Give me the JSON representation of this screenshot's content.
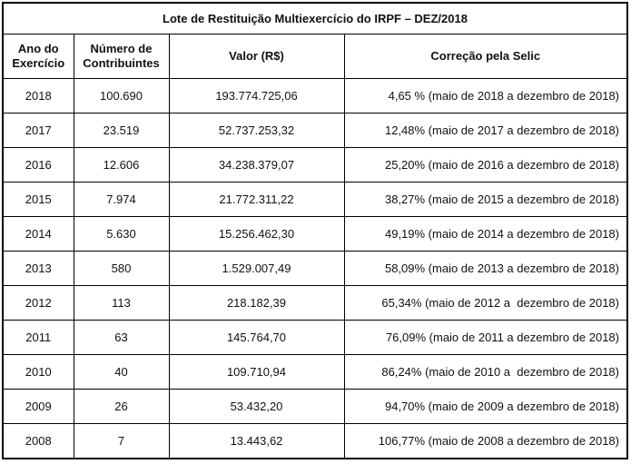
{
  "title": "Lote de Restituição Multiexercício do IRPF – DEZ/2018",
  "headers": {
    "ano_l1": "Ano do",
    "ano_l2": "Exercício",
    "num_l1": "Número de",
    "num_l2": "Contribuintes",
    "valor": "Valor (R$)",
    "correcao": "Correção pela Selic"
  },
  "rows": [
    {
      "ano": "2018",
      "contribuintes": "100.690",
      "valor": "193.774.725,06",
      "correcao": "4,65 % (maio de 2018 a dezembro de 2018)"
    },
    {
      "ano": "2017",
      "contribuintes": "23.519",
      "valor": "52.737.253,32",
      "correcao": "12,48% (maio de 2017 a dezembro de 2018)"
    },
    {
      "ano": "2016",
      "contribuintes": "12.606",
      "valor": "34.238.379,07",
      "correcao": "25,20% (maio de 2016 a dezembro de 2018)"
    },
    {
      "ano": "2015",
      "contribuintes": "7.974",
      "valor": "21.772.311,22",
      "correcao": "38,27% (maio de 2015 a dezembro de 2018)"
    },
    {
      "ano": "2014",
      "contribuintes": "5.630",
      "valor": "15.256.462,30",
      "correcao": "49,19% (maio de 2014 a dezembro de 2018)"
    },
    {
      "ano": "2013",
      "contribuintes": "580",
      "valor": "1.529.007,49",
      "correcao": "58,09% (maio de 2013 a dezembro de 2018)"
    },
    {
      "ano": "2012",
      "contribuintes": "113",
      "valor": "218.182,39",
      "correcao": "65,34% (maio de 2012 a  dezembro de 2018)"
    },
    {
      "ano": "2011",
      "contribuintes": "63",
      "valor": "145.764,70",
      "correcao": "76,09% (maio de 2011 a dezembro de 2018)"
    },
    {
      "ano": "2010",
      "contribuintes": "40",
      "valor": "109.710,94",
      "correcao": "86,24% (maio de 2010 a  dezembro de 2018)"
    },
    {
      "ano": "2009",
      "contribuintes": "26",
      "valor": "53.432,20",
      "correcao": "94,70% (maio de 2009 a dezembro de 2018)"
    },
    {
      "ano": "2008",
      "contribuintes": "7",
      "valor": "13.443,62",
      "correcao": "106,77% (maio de 2008 a dezembro de 2018)"
    }
  ]
}
